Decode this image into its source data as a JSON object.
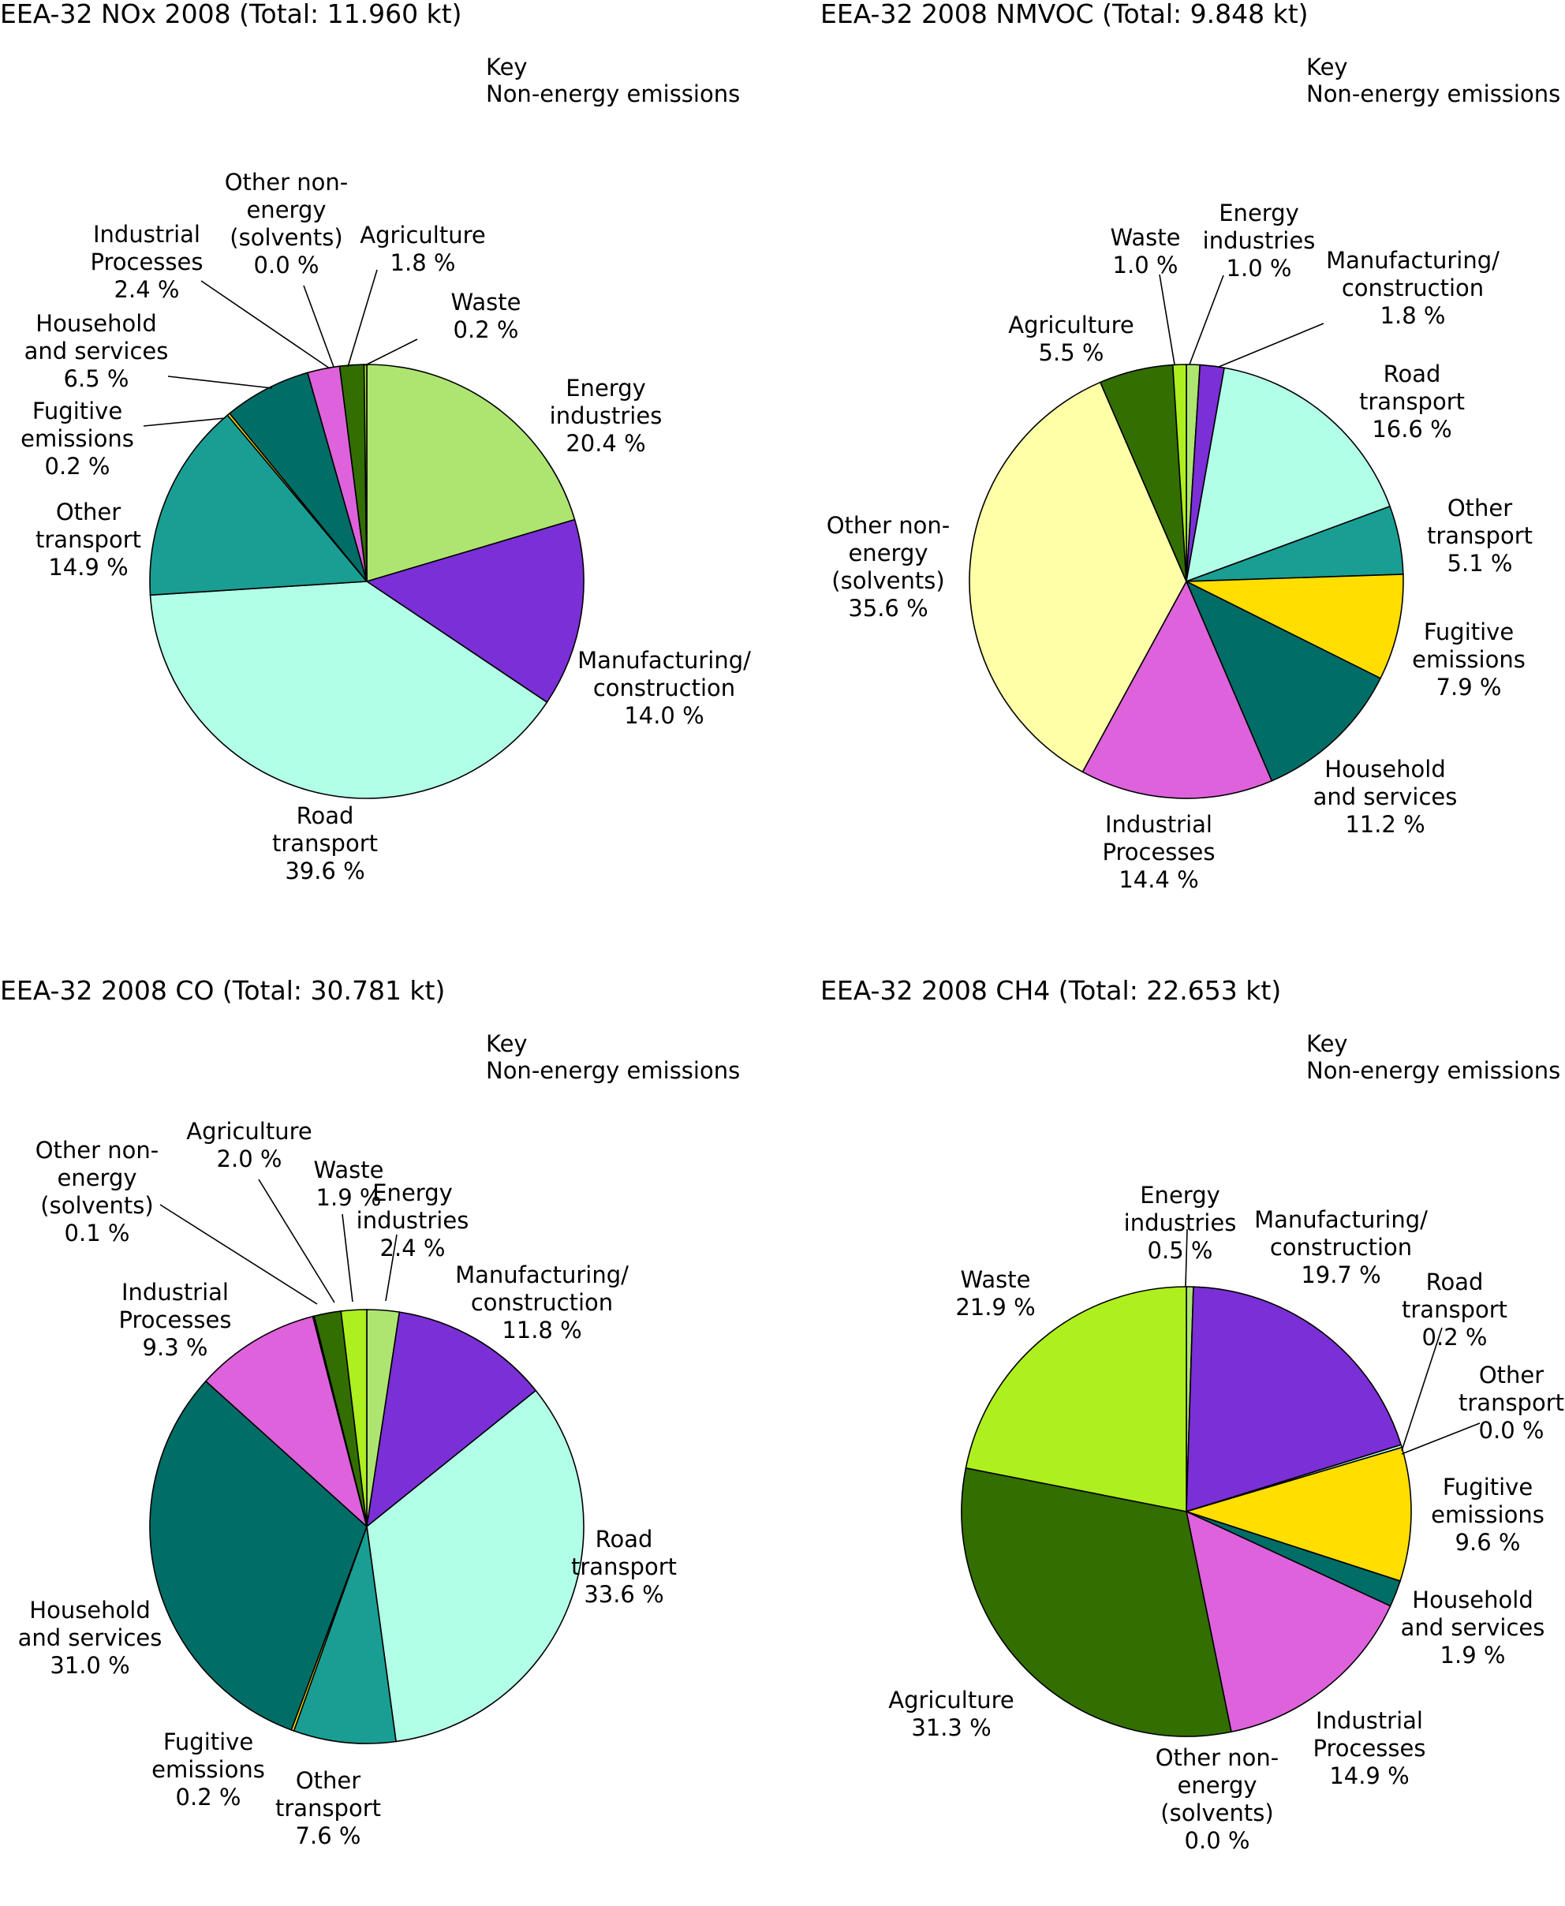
{
  "colors": {
    "Energy industries": "#aee571",
    "Manufacturing/construction": "#7b2fd6",
    "Road transport": "#b2ffe8",
    "Other transport": "#1a9e93",
    "Fugitive emissions": "#ffde00",
    "Household and services": "#006d66",
    "Industrial Processes": "#de62db",
    "Other non-energy (solvents)": "#ffffa8",
    "Agriculture": "#336e00",
    "Waste": "#aeef1f"
  },
  "chart_data": [
    {
      "type": "pie",
      "title": "EEA-32 NOx 2008 (Total: 11.960 kt)",
      "key_title": "Key",
      "key_subtitle": "Non-energy emissions",
      "slices": [
        {
          "name": "Energy industries",
          "label_lines": [
            "Energy",
            "industries"
          ],
          "value": 20.4,
          "value_text": "20.4 %"
        },
        {
          "name": "Manufacturing/construction",
          "label_lines": [
            "Manufacturing/",
            "construction"
          ],
          "value": 14.0,
          "value_text": "14.0 %"
        },
        {
          "name": "Road transport",
          "label_lines": [
            "Road",
            "transport"
          ],
          "value": 39.6,
          "value_text": "39.6 %"
        },
        {
          "name": "Other transport",
          "label_lines": [
            "Other",
            "transport"
          ],
          "value": 14.9,
          "value_text": "14.9 %"
        },
        {
          "name": "Fugitive emissions",
          "label_lines": [
            "Fugitive",
            "emissions"
          ],
          "value": 0.2,
          "value_text": "0.2 %"
        },
        {
          "name": "Household and services",
          "label_lines": [
            "Household",
            "and services"
          ],
          "value": 6.5,
          "value_text": "6.5 %"
        },
        {
          "name": "Industrial Processes",
          "label_lines": [
            "Industrial",
            "Processes"
          ],
          "value": 2.4,
          "value_text": "2.4 %"
        },
        {
          "name": "Other non-energy (solvents)",
          "label_lines": [
            "Other non-",
            "energy",
            "(solvents)"
          ],
          "value": 0.0,
          "value_text": "0.0 %"
        },
        {
          "name": "Agriculture",
          "label_lines": [
            "Agriculture"
          ],
          "value": 1.8,
          "value_text": "1.8 %"
        },
        {
          "name": "Waste",
          "label_lines": [
            "Waste"
          ],
          "value": 0.2,
          "value_text": "0.2 %"
        }
      ]
    },
    {
      "type": "pie",
      "title": "EEA-32 2008 NMVOC (Total: 9.848 kt)",
      "key_title": "Key",
      "key_subtitle": "Non-energy emissions",
      "slices": [
        {
          "name": "Energy industries",
          "label_lines": [
            "Energy",
            "industries"
          ],
          "value": 1.0,
          "value_text": "1.0 %"
        },
        {
          "name": "Manufacturing/construction",
          "label_lines": [
            "Manufacturing/",
            "construction"
          ],
          "value": 1.8,
          "value_text": "1.8 %"
        },
        {
          "name": "Road transport",
          "label_lines": [
            "Road",
            "transport"
          ],
          "value": 16.6,
          "value_text": "16.6 %"
        },
        {
          "name": "Other transport",
          "label_lines": [
            "Other",
            "transport"
          ],
          "value": 5.1,
          "value_text": "5.1 %"
        },
        {
          "name": "Fugitive emissions",
          "label_lines": [
            "Fugitive",
            "emissions"
          ],
          "value": 7.9,
          "value_text": "7.9 %"
        },
        {
          "name": "Household and services",
          "label_lines": [
            "Household",
            "and services"
          ],
          "value": 11.2,
          "value_text": "11.2 %"
        },
        {
          "name": "Industrial Processes",
          "label_lines": [
            "Industrial",
            "Processes"
          ],
          "value": 14.4,
          "value_text": "14.4 %"
        },
        {
          "name": "Other non-energy (solvents)",
          "label_lines": [
            "Other non-",
            "energy",
            "(solvents)"
          ],
          "value": 35.6,
          "value_text": "35.6 %"
        },
        {
          "name": "Agriculture",
          "label_lines": [
            "Agriculture"
          ],
          "value": 5.5,
          "value_text": "5.5 %"
        },
        {
          "name": "Waste",
          "label_lines": [
            "Waste"
          ],
          "value": 1.0,
          "value_text": "1.0 %"
        }
      ]
    },
    {
      "type": "pie",
      "title": "EEA-32 2008 CO (Total: 30.781 kt)",
      "key_title": "Key",
      "key_subtitle": "Non-energy emissions",
      "slices": [
        {
          "name": "Energy industries",
          "label_lines": [
            "Energy",
            "industries"
          ],
          "value": 2.4,
          "value_text": "2.4 %"
        },
        {
          "name": "Manufacturing/construction",
          "label_lines": [
            "Manufacturing/",
            "construction"
          ],
          "value": 11.8,
          "value_text": "11.8 %"
        },
        {
          "name": "Road transport",
          "label_lines": [
            "Road",
            "transport"
          ],
          "value": 33.6,
          "value_text": "33.6 %"
        },
        {
          "name": "Other transport",
          "label_lines": [
            "Other",
            "transport"
          ],
          "value": 7.6,
          "value_text": "7.6 %"
        },
        {
          "name": "Fugitive emissions",
          "label_lines": [
            "Fugitive",
            "emissions"
          ],
          "value": 0.2,
          "value_text": "0.2 %"
        },
        {
          "name": "Household and services",
          "label_lines": [
            "Household",
            "and services"
          ],
          "value": 31.0,
          "value_text": "31.0 %"
        },
        {
          "name": "Industrial Processes",
          "label_lines": [
            "Industrial",
            "Processes"
          ],
          "value": 9.3,
          "value_text": "9.3 %"
        },
        {
          "name": "Other non-energy (solvents)",
          "label_lines": [
            "Other non-",
            "energy",
            "(solvents)"
          ],
          "value": 0.1,
          "value_text": "0.1 %"
        },
        {
          "name": "Agriculture",
          "label_lines": [
            "Agriculture"
          ],
          "value": 2.0,
          "value_text": "2.0 %"
        },
        {
          "name": "Waste",
          "label_lines": [
            "Waste"
          ],
          "value": 1.9,
          "value_text": "1.9 %"
        }
      ]
    },
    {
      "type": "pie",
      "title": "EEA-32 2008 CH4 (Total: 22.653 kt)",
      "key_title": "Key",
      "key_subtitle": "Non-energy emissions",
      "slices": [
        {
          "name": "Energy industries",
          "label_lines": [
            "Energy",
            "industries"
          ],
          "value": 0.5,
          "value_text": "0.5 %"
        },
        {
          "name": "Manufacturing/construction",
          "label_lines": [
            "Manufacturing/",
            "construction"
          ],
          "value": 19.7,
          "value_text": "19.7 %"
        },
        {
          "name": "Road transport",
          "label_lines": [
            "Road",
            "transport"
          ],
          "value": 0.2,
          "value_text": "0.2 %"
        },
        {
          "name": "Other transport",
          "label_lines": [
            "Other",
            "transport"
          ],
          "value": 0.0,
          "value_text": "0.0 %"
        },
        {
          "name": "Fugitive emissions",
          "label_lines": [
            "Fugitive",
            "emissions"
          ],
          "value": 9.6,
          "value_text": "9.6 %"
        },
        {
          "name": "Household and services",
          "label_lines": [
            "Household",
            "and services"
          ],
          "value": 1.9,
          "value_text": "1.9 %"
        },
        {
          "name": "Industrial Processes",
          "label_lines": [
            "Industrial",
            "Processes"
          ],
          "value": 14.9,
          "value_text": "14.9 %"
        },
        {
          "name": "Other non-energy (solvents)",
          "label_lines": [
            "Other non-",
            "energy",
            "(solvents)"
          ],
          "value": 0.0,
          "value_text": "0.0 %"
        },
        {
          "name": "Agriculture",
          "label_lines": [
            "Agriculture"
          ],
          "value": 31.3,
          "value_text": "31.3 %"
        },
        {
          "name": "Waste",
          "label_lines": [
            "Waste"
          ],
          "value": 21.9,
          "value_text": "21.9 %"
        }
      ]
    }
  ]
}
